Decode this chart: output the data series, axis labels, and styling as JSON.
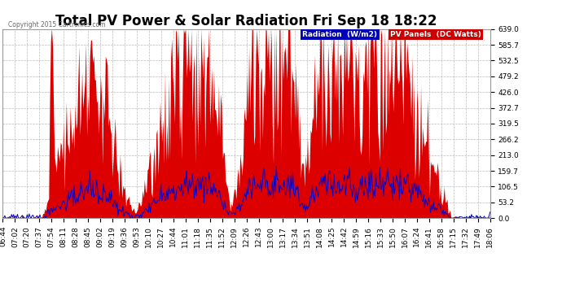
{
  "title": "Total PV Power & Solar Radiation Fri Sep 18 18:22",
  "copyright": "Copyright 2015 Cartronics.com",
  "legend_radiation": "Radiation  (W/m2)",
  "legend_pv": "PV Panels  (DC Watts)",
  "legend_radiation_bg": "#0000bb",
  "legend_pv_bg": "#cc0000",
  "legend_text_color": "#ffffff",
  "ymin": 0.0,
  "ymax": 639.0,
  "yticks": [
    0.0,
    53.2,
    106.5,
    159.7,
    213.0,
    266.2,
    319.5,
    372.7,
    426.0,
    479.2,
    532.5,
    585.7,
    639.0
  ],
  "background_color": "#ffffff",
  "plot_bg": "#ffffff",
  "grid_color": "#bbbbbb",
  "pv_fill_color": "#dd0000",
  "radiation_line_color": "#0000cc",
  "title_fontsize": 12,
  "tick_fontsize": 6.5,
  "n_points": 500,
  "xtick_labels": [
    "06:44",
    "07:02",
    "07:20",
    "07:37",
    "07:54",
    "08:11",
    "08:28",
    "08:45",
    "09:02",
    "09:19",
    "09:36",
    "09:53",
    "10:10",
    "10:27",
    "10:44",
    "11:01",
    "11:18",
    "11:35",
    "11:52",
    "12:09",
    "12:26",
    "12:43",
    "13:00",
    "13:17",
    "13:34",
    "13:51",
    "14:08",
    "14:25",
    "14:42",
    "14:59",
    "15:16",
    "15:33",
    "15:50",
    "16:07",
    "16:24",
    "16:41",
    "16:58",
    "17:15",
    "17:32",
    "17:49",
    "18:06"
  ]
}
